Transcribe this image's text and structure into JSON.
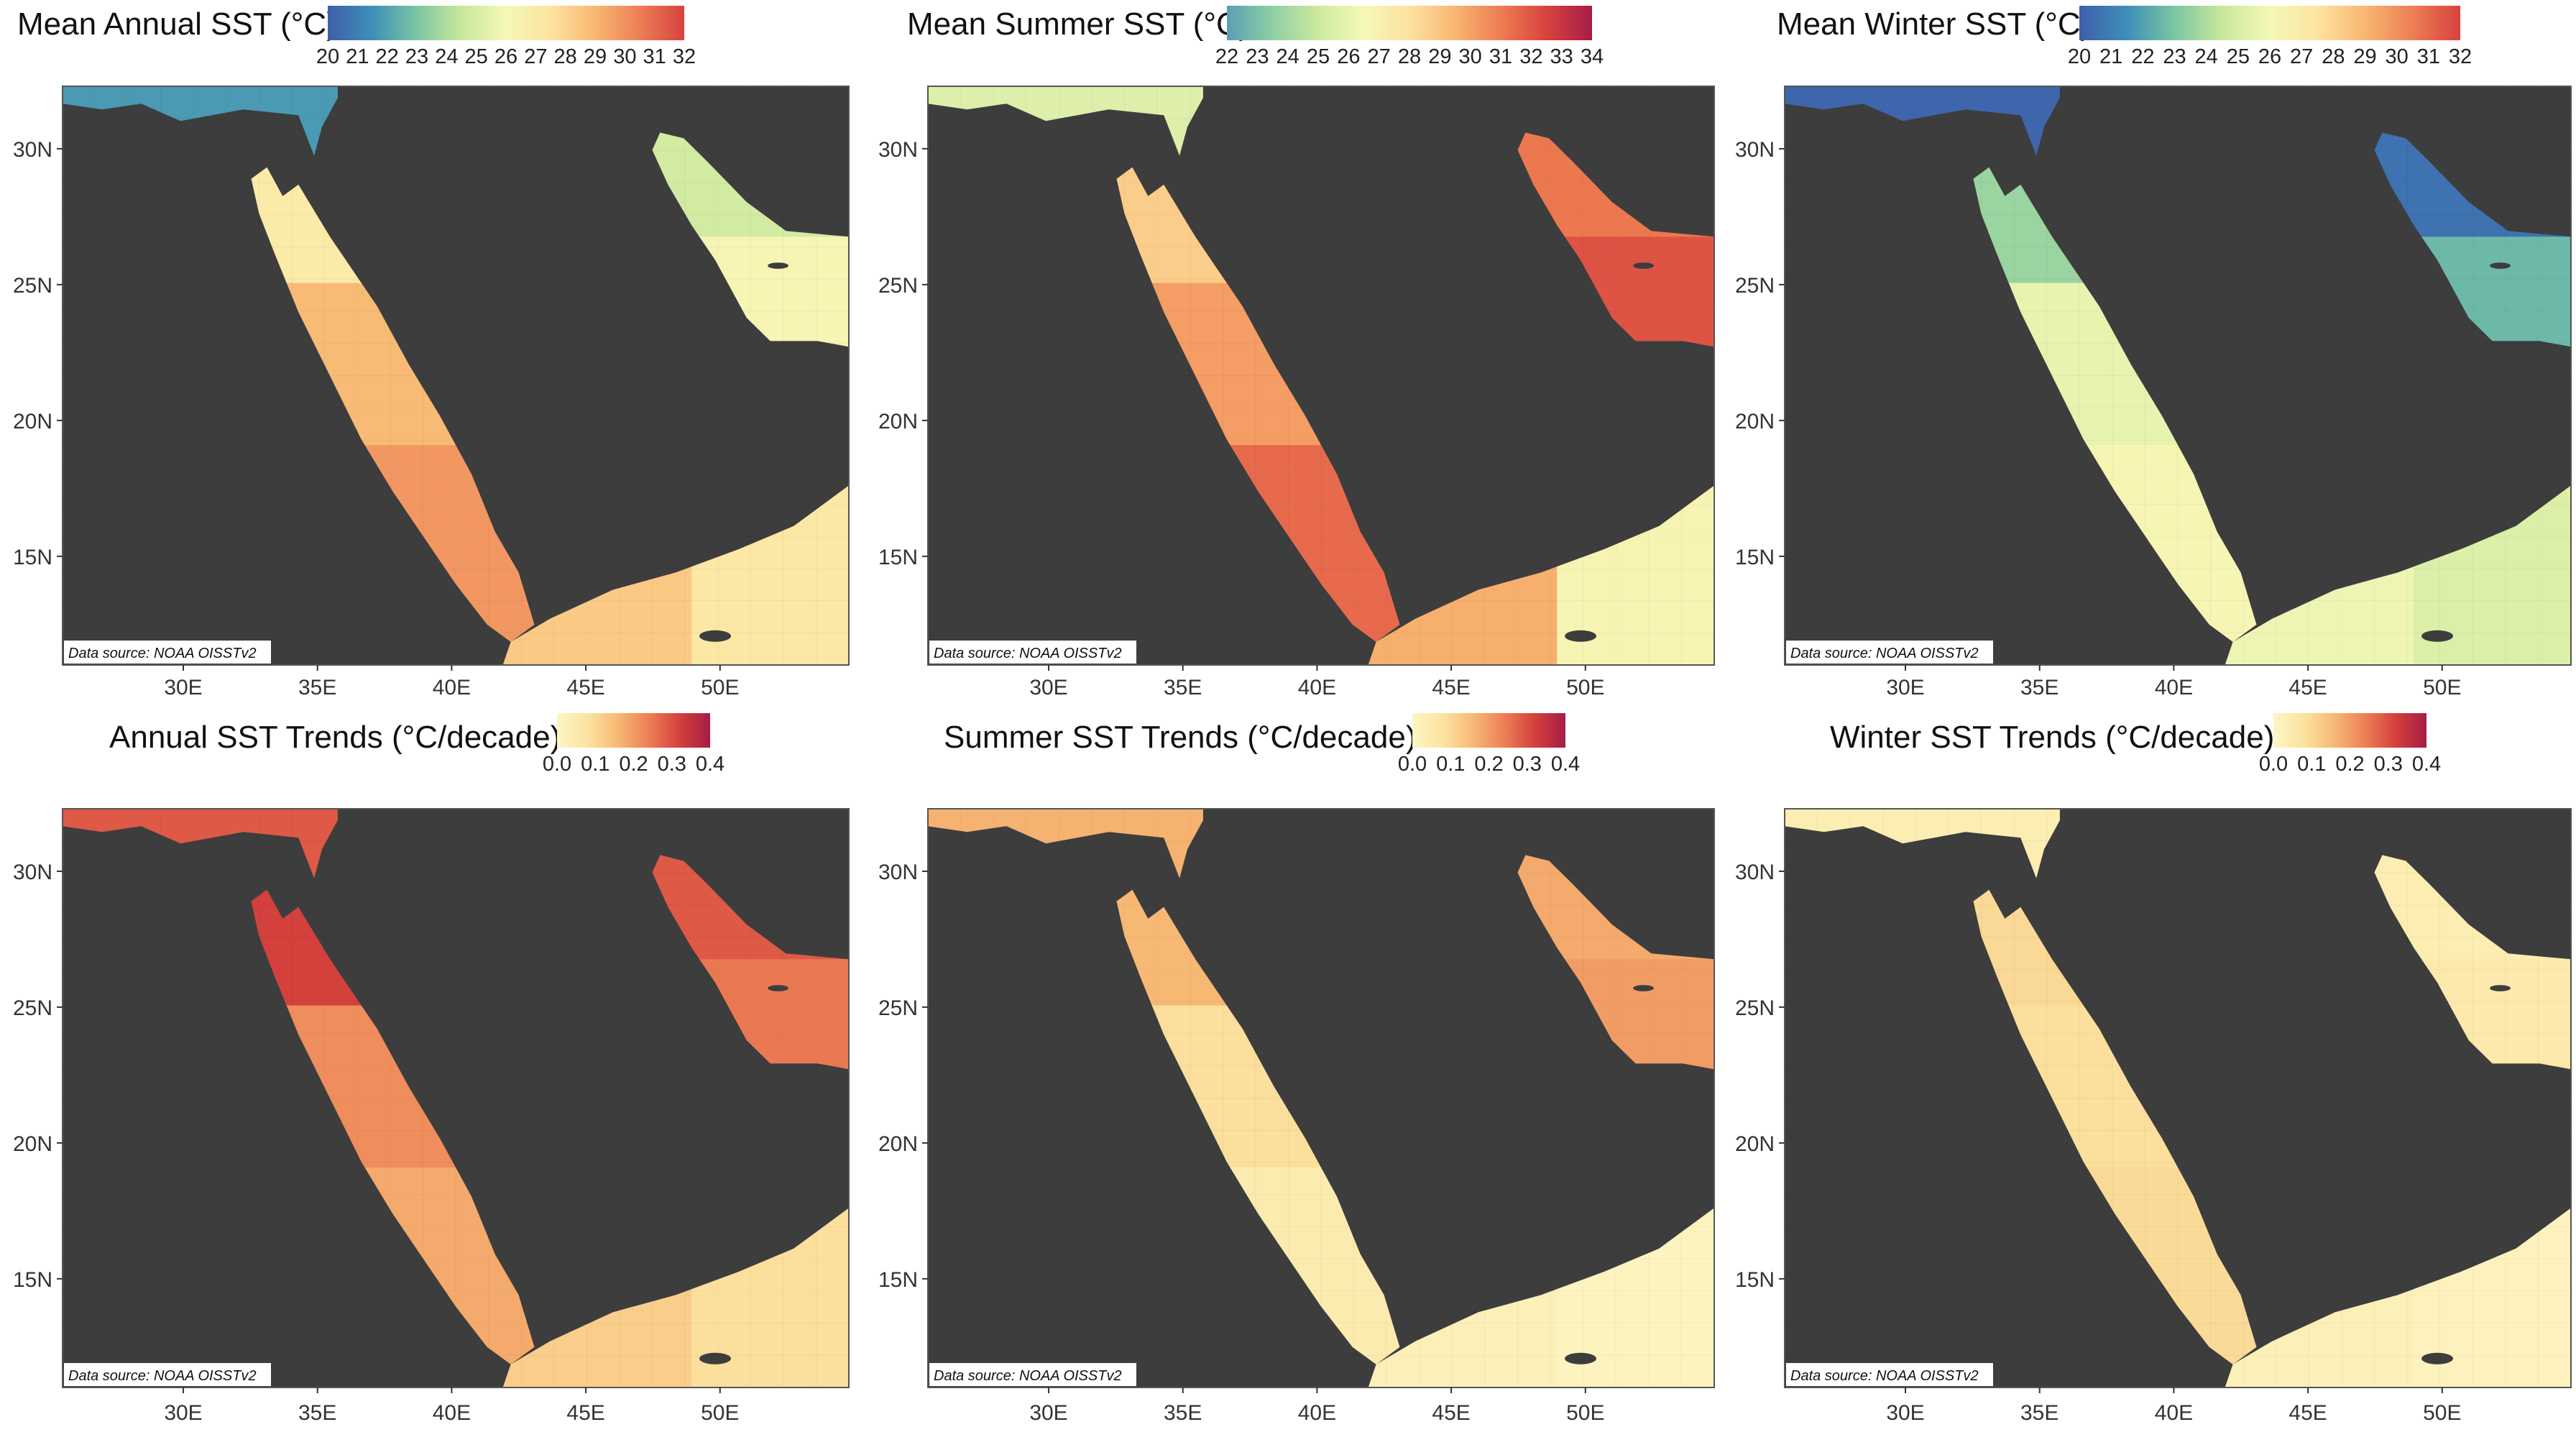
{
  "source_note": "Data source: NOAA OISSTv2",
  "land_color": "#3d3d3d",
  "axes": {
    "lon_ticks": [
      "30E",
      "35E",
      "40E",
      "45E",
      "50E"
    ],
    "lat_ticks": [
      "30N",
      "25N",
      "20N",
      "15N"
    ]
  },
  "palettes": {
    "spectral": [
      "#3f5eaa",
      "#3d8fb8",
      "#7cc6a4",
      "#c8e89c",
      "#f5f8b8",
      "#fde4a0",
      "#f8b772",
      "#ed7e55",
      "#d6423d"
    ],
    "spectral_summer": [
      "#5a9fb5",
      "#8fcfa4",
      "#cde9a0",
      "#f5f8b8",
      "#fde2a0",
      "#f8b672",
      "#ee7d52",
      "#d8423e",
      "#a51d45"
    ],
    "trend": [
      "#fdf6c4",
      "#fbe3a0",
      "#f7b874",
      "#ec7f55",
      "#d4403c",
      "#a51d45"
    ]
  },
  "panels": [
    {
      "title": "Mean Annual SST (°C)",
      "palette": "spectral",
      "ticks": [
        "20",
        "21",
        "22",
        "23",
        "24",
        "25",
        "26",
        "27",
        "28",
        "29",
        "30",
        "31",
        "32"
      ],
      "values": {
        "nw": 0.15,
        "gulf_n": 0.4,
        "gulf_s": 0.52,
        "red_n": 0.58,
        "red_c": 0.74,
        "red_s": 0.82,
        "aden": 0.7,
        "arab": 0.6
      }
    },
    {
      "title": "Mean Summer SST (°C)",
      "palette": "spectral_summer",
      "ticks": [
        "22",
        "23",
        "24",
        "25",
        "26",
        "27",
        "28",
        "29",
        "30",
        "31",
        "32",
        "33",
        "34"
      ],
      "values": {
        "nw": 0.3,
        "gulf_n": 0.76,
        "gulf_s": 0.84,
        "red_n": 0.56,
        "red_c": 0.68,
        "red_s": 0.79,
        "aden": 0.64,
        "arab": 0.4
      }
    },
    {
      "title": "Mean Winter SST (°C)",
      "palette": "spectral",
      "ticks": [
        "20",
        "21",
        "22",
        "23",
        "24",
        "25",
        "26",
        "27",
        "28",
        "29",
        "30",
        "31",
        "32"
      ],
      "values": {
        "nw": 0.02,
        "gulf_n": 0.05,
        "gulf_s": 0.22,
        "red_n": 0.3,
        "red_c": 0.46,
        "red_s": 0.52,
        "aden": 0.48,
        "arab": 0.43
      }
    },
    {
      "title": "Annual SST Trends (°C/decade)",
      "palette": "trend",
      "ticks": [
        "0.0",
        "0.1",
        "0.2",
        "0.3",
        "0.4"
      ],
      "values": {
        "nw": 0.72,
        "gulf_n": 0.72,
        "gulf_s": 0.62,
        "red_n": 0.8,
        "red_c": 0.55,
        "red_s": 0.45,
        "aden": 0.3,
        "arab": 0.22
      }
    },
    {
      "title": "Summer SST Trends (°C/decade)",
      "palette": "trend",
      "ticks": [
        "0.0",
        "0.1",
        "0.2",
        "0.3",
        "0.4"
      ],
      "values": {
        "nw": 0.42,
        "gulf_n": 0.45,
        "gulf_s": 0.5,
        "red_n": 0.4,
        "red_c": 0.22,
        "red_s": 0.12,
        "aden": 0.06,
        "arab": 0.03
      }
    },
    {
      "title": "Winter SST Trends (°C/decade)",
      "palette": "trend",
      "ticks": [
        "0.0",
        "0.1",
        "0.2",
        "0.3",
        "0.4"
      ],
      "values": {
        "nw": 0.1,
        "gulf_n": 0.1,
        "gulf_s": 0.14,
        "red_n": 0.25,
        "red_c": 0.22,
        "red_s": 0.24,
        "aden": 0.06,
        "arab": 0.04
      }
    }
  ]
}
